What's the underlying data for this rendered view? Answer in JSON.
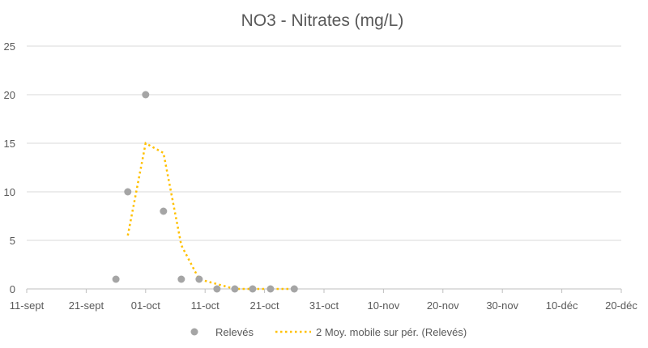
{
  "chart_data": {
    "type": "scatter",
    "title": "NO3 - Nitrates (mg/L)",
    "xlabel": "",
    "ylabel": "",
    "x_ticks": [
      "11-sept",
      "21-sept",
      "01-oct",
      "11-oct",
      "21-oct",
      "31-oct",
      "10-nov",
      "20-nov",
      "30-nov",
      "10-déc",
      "20-déc"
    ],
    "y_ticks": [
      "0",
      "5",
      "10",
      "15",
      "20",
      "25"
    ],
    "xlim": [
      "11-sept",
      "20-déc"
    ],
    "ylim": [
      0,
      25
    ],
    "grid": "horizontal",
    "legend_position": "bottom",
    "series": [
      {
        "name": "Relevés",
        "type": "scatter",
        "color": "#A5A5A5",
        "x": [
          "26-sept",
          "28-sept",
          "01-oct",
          "04-oct",
          "07-oct",
          "10-oct",
          "13-oct",
          "16-oct",
          "19-oct",
          "22-oct",
          "26-oct"
        ],
        "y": [
          1,
          10,
          20,
          8,
          1,
          1,
          0,
          0,
          0,
          0,
          0
        ]
      },
      {
        "name": "2 Moy. mobile sur pér. (Relevés)",
        "type": "line",
        "style": "dotted",
        "color": "#FFC000",
        "x": [
          "28-sept",
          "01-oct",
          "04-oct",
          "07-oct",
          "10-oct",
          "13-oct",
          "16-oct",
          "19-oct",
          "22-oct",
          "26-oct"
        ],
        "y": [
          5.5,
          15,
          14,
          4.5,
          1,
          0.5,
          0,
          0,
          0,
          0
        ]
      }
    ]
  }
}
